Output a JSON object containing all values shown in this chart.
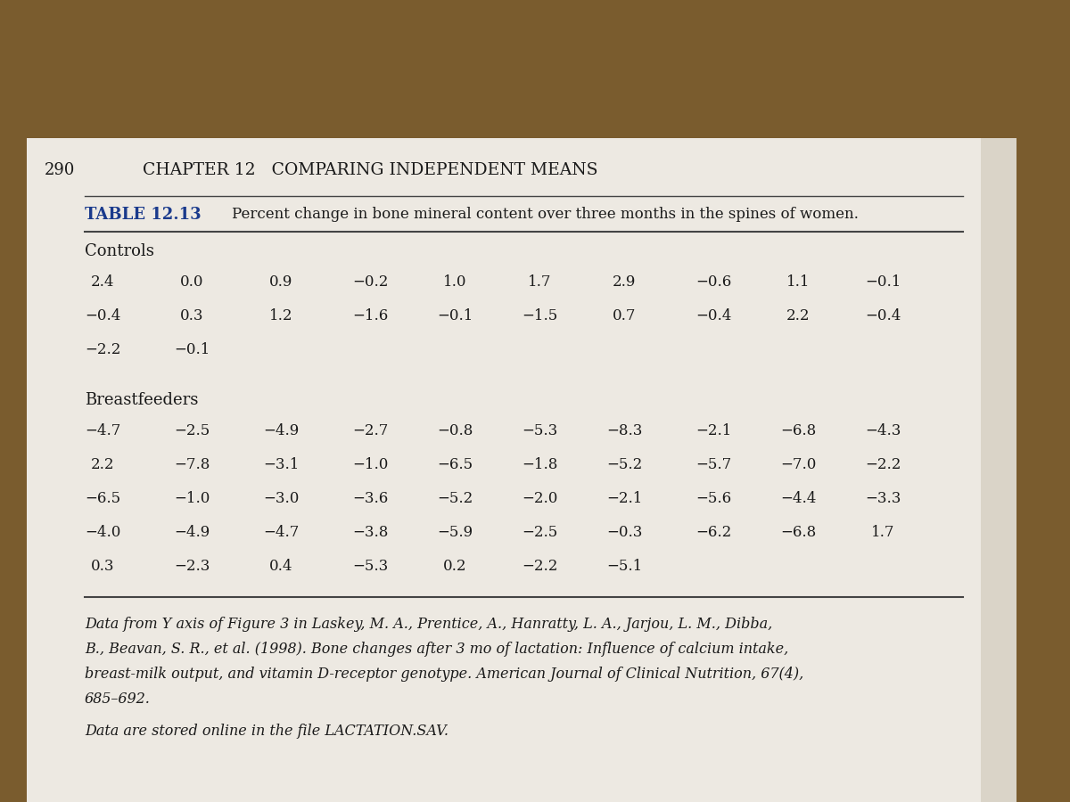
{
  "page_number": "290",
  "chapter_header": "CHAPTER 12   COMPARING INDEPENDENT MEANS",
  "table_label": "TABLE 12.13",
  "table_title": "Percent change in bone mineral content over three months in the spines of women.",
  "controls_label": "Controls",
  "controls_rows": [
    [
      "2.4",
      "0.0",
      "0.9",
      "−0.2",
      "1.0",
      "1.7",
      "2.9",
      "−0.6",
      "1.1",
      "−0.1"
    ],
    [
      "−0.4",
      "0.3",
      "1.2",
      "−1.6",
      "−0.1",
      "−1.5",
      "0.7",
      "−0.4",
      "2.2",
      "−0.4"
    ],
    [
      "−2.2",
      "−0.1",
      "",
      "",
      "",
      "",
      "",
      "",
      "",
      ""
    ]
  ],
  "breastfeeders_label": "Breastfeeders",
  "breastfeeders_rows": [
    [
      "−4.7",
      "−2.5",
      "−4.9",
      "−2.7",
      "−0.8",
      "−5.3",
      "−8.3",
      "−2.1",
      "−6.8",
      "−4.3"
    ],
    [
      "2.2",
      "−7.8",
      "−3.1",
      "−1.0",
      "−6.5",
      "−1.8",
      "−5.2",
      "−5.7",
      "−7.0",
      "−2.2"
    ],
    [
      "−6.5",
      "−1.0",
      "−3.0",
      "−3.6",
      "−5.2",
      "−2.0",
      "−2.1",
      "−5.6",
      "−4.4",
      "−3.3"
    ],
    [
      "−4.0",
      "−4.9",
      "−4.7",
      "−3.8",
      "−5.9",
      "−2.5",
      "−0.3",
      "−6.2",
      "−6.8",
      "1.7"
    ],
    [
      "0.3",
      "−2.3",
      "0.4",
      "−5.3",
      "0.2",
      "−2.2",
      "−5.1",
      "",
      "",
      ""
    ]
  ],
  "wood_color": "#7a5c2e",
  "page_color": "#ede9e2",
  "text_color": "#1a1a1a",
  "blue_label_color": "#1a3a8c",
  "line_color": "#555555",
  "fn_line1": "Data from Y axis of Figure 3 in Laskey, M. A., Prentice, A., Hanratty, L. A., Jarjou, L. M., Dibba,",
  "fn_line2": "B., Beavan, S. R., et al. (1998). Bone changes after 3 mo of lactation: Influence of calcium intake,",
  "fn_line3_pre": "breast-milk output, and vitamin D-receptor genotype. ",
  "fn_line3_italic": "American Journal of Clinical Nutrition,",
  "fn_line3_post": " 67(4),",
  "fn_line4": "685–692.",
  "fn_line5": "Data are stored online in the file LACTATION.SAV."
}
